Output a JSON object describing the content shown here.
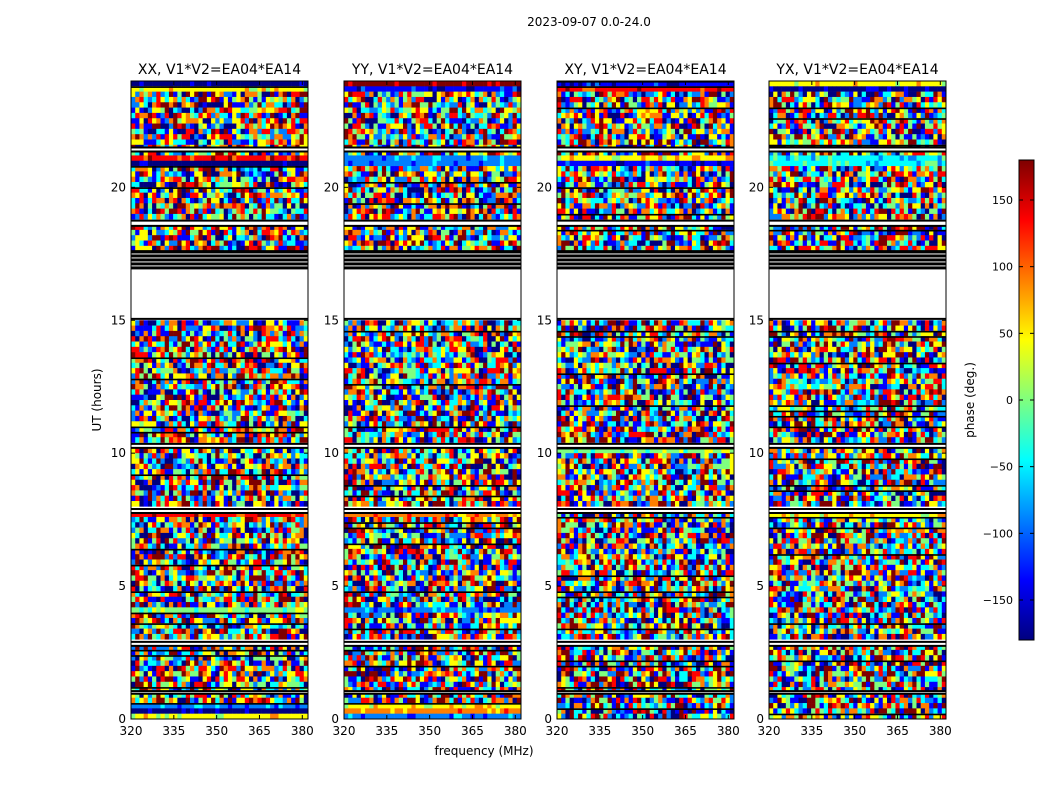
{
  "figure": {
    "suptitle": "2023-09-07 0.0-24.0",
    "xlabel": "frequency (MHz)",
    "ylabel": "UT (hours)"
  },
  "chart_data": {
    "type": "heatmap",
    "title": "2023-09-07 0.0-24.0",
    "xlabel": "frequency (MHz)",
    "ylabel": "UT (hours)",
    "xlim": [
      320,
      382
    ],
    "ylim": [
      0,
      24
    ],
    "x_ticks": [
      320,
      335,
      350,
      365,
      380
    ],
    "y_ticks": [
      0,
      5,
      10,
      15,
      20
    ],
    "colorbar": {
      "label": "phase (deg.)",
      "range": [
        -180,
        180
      ],
      "ticks": [
        -150,
        -100,
        -50,
        0,
        50,
        100,
        150
      ],
      "colormap": "jet",
      "stops": [
        "#00007f",
        "#0000ff",
        "#007fff",
        "#00ffff",
        "#7fff7f",
        "#ffff00",
        "#ff7f00",
        "#ff0000",
        "#7f0000"
      ]
    },
    "flagged_bands_hours": [
      [
        15.05,
        17.6
      ],
      [
        18.55,
        18.75
      ],
      [
        21.35,
        21.5
      ],
      [
        10.2,
        10.35
      ],
      [
        7.75,
        7.9
      ],
      [
        2.75,
        2.9
      ],
      [
        0.95,
        1.05
      ]
    ],
    "panels": [
      {
        "title": "XX, V1*V2=EA04*EA14",
        "coherent_bands_hours": [
          [
            23.7,
            23.95
          ],
          [
            20.85,
            21.25
          ],
          [
            7.55,
            7.75
          ],
          [
            3.95,
            4.25
          ],
          [
            0.0,
            0.6
          ]
        ]
      },
      {
        "title": "YY, V1*V2=EA04*EA14",
        "coherent_bands_hours": [
          [
            23.7,
            23.95
          ],
          [
            20.85,
            21.25
          ],
          [
            7.55,
            7.75
          ],
          [
            3.95,
            4.25
          ],
          [
            0.0,
            0.6
          ]
        ]
      },
      {
        "title": "XY, V1*V2=EA04*EA14",
        "coherent_bands_hours": [
          [
            23.6,
            23.95
          ],
          [
            20.85,
            21.25
          ],
          [
            10.0,
            10.3
          ],
          [
            7.9,
            8.1
          ]
        ]
      },
      {
        "title": "YX, V1*V2=EA04*EA14",
        "coherent_bands_hours": [
          [
            23.7,
            23.95
          ],
          [
            20.85,
            21.25
          ],
          [
            7.55,
            7.75
          ]
        ]
      }
    ]
  }
}
